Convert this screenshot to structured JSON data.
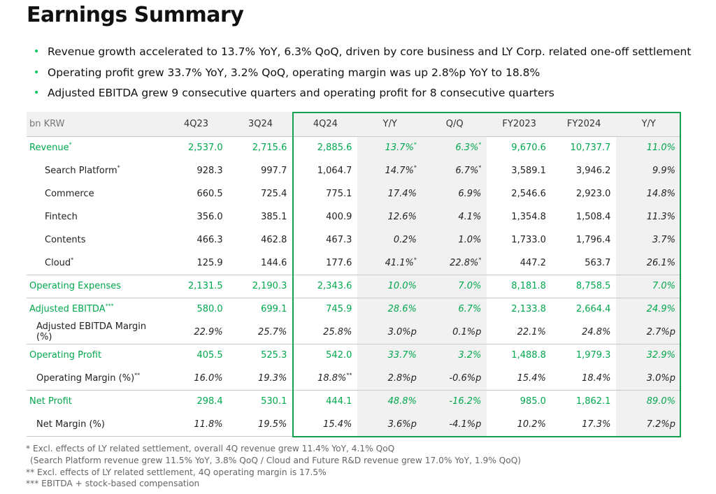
{
  "title": "Earnings Summary",
  "bullets": [
    "Revenue growth accelerated to 13.7% YoY, 6.3% QoQ, driven by core business and LY Corp. related one-off settlement",
    "Operating profit grew 33.7% YoY, 3.2% QoQ, operating margin was up 2.8%p YoY to 18.8%",
    "Adjusted EBITDA grew 9 consecutive quarters and operating profit for 8 consecutive quarters"
  ],
  "table": {
    "unit": "bn KRW",
    "headers": [
      "4Q23",
      "3Q24",
      "4Q24",
      "Y/Y",
      "Q/Q",
      "FY2023",
      "FY2024",
      "Y/Y"
    ],
    "rows": [
      {
        "label": "Revenue",
        "mark": "*",
        "values": [
          "2,537.0",
          "2,715.6",
          "2,885.6",
          "13.7%",
          "6.3%",
          "9,670.6",
          "10,737.7",
          "11.0%"
        ],
        "marks": [
          "",
          "",
          "",
          "*",
          "*",
          "",
          "",
          ""
        ]
      },
      {
        "label": "Search Platform",
        "mark": "*",
        "values": [
          "928.3",
          "997.7",
          "1,064.7",
          "14.7%",
          "6.7%",
          "3,589.1",
          "3,946.2",
          "9.9%"
        ],
        "marks": [
          "",
          "",
          "",
          "*",
          "*",
          "",
          "",
          ""
        ]
      },
      {
        "label": "Commerce",
        "mark": "",
        "values": [
          "660.5",
          "725.4",
          "775.1",
          "17.4%",
          "6.9%",
          "2,546.6",
          "2,923.0",
          "14.8%"
        ],
        "marks": [
          "",
          "",
          "",
          "",
          "",
          "",
          "",
          ""
        ]
      },
      {
        "label": "Fintech",
        "mark": "",
        "values": [
          "356.0",
          "385.1",
          "400.9",
          "12.6%",
          "4.1%",
          "1,354.8",
          "1,508.4",
          "11.3%"
        ],
        "marks": [
          "",
          "",
          "",
          "",
          "",
          "",
          "",
          ""
        ]
      },
      {
        "label": "Contents",
        "mark": "",
        "values": [
          "466.3",
          "462.8",
          "467.3",
          "0.2%",
          "1.0%",
          "1,733.0",
          "1,796.4",
          "3.7%"
        ],
        "marks": [
          "",
          "",
          "",
          "",
          "",
          "",
          "",
          ""
        ]
      },
      {
        "label": "Cloud",
        "mark": "*",
        "values": [
          "125.9",
          "144.6",
          "177.6",
          "41.1%",
          "22.8%",
          "447.2",
          "563.7",
          "26.1%"
        ],
        "marks": [
          "",
          "",
          "",
          "*",
          "*",
          "",
          "",
          ""
        ]
      },
      {
        "label": "Operating Expenses",
        "mark": "",
        "values": [
          "2,131.5",
          "2,190.3",
          "2,343.6",
          "10.0%",
          "7.0%",
          "8,181.8",
          "8,758.5",
          "7.0%"
        ],
        "marks": [
          "",
          "",
          "",
          "",
          "",
          "",
          "",
          ""
        ]
      },
      {
        "label": "Adjusted EBITDA",
        "mark": "***",
        "values": [
          "580.0",
          "699.1",
          "745.9",
          "28.6%",
          "6.7%",
          "2,133.8",
          "2,664.4",
          "24.9%"
        ],
        "marks": [
          "",
          "",
          "",
          "",
          "",
          "",
          "",
          ""
        ]
      },
      {
        "label": "Adjusted EBITDA Margin (%)",
        "mark": "",
        "values": [
          "22.9%",
          "25.7%",
          "25.8%",
          "3.0%p",
          "0.1%p",
          "22.1%",
          "24.8%",
          "2.7%p"
        ],
        "marks": [
          "",
          "",
          "",
          "",
          "",
          "",
          "",
          ""
        ]
      },
      {
        "label": "Operating Profit",
        "mark": "",
        "values": [
          "405.5",
          "525.3",
          "542.0",
          "33.7%",
          "3.2%",
          "1,488.8",
          "1,979.3",
          "32.9%"
        ],
        "marks": [
          "",
          "",
          "",
          "",
          "",
          "",
          "",
          ""
        ]
      },
      {
        "label": "Operating Margin (%)",
        "mark": "**",
        "values": [
          "16.0%",
          "19.3%",
          "18.8%",
          "2.8%p",
          "-0.6%p",
          "15.4%",
          "18.4%",
          "3.0%p"
        ],
        "marks": [
          "",
          "",
          "**",
          "",
          "",
          "",
          "",
          ""
        ]
      },
      {
        "label": "Net Profit",
        "mark": "",
        "values": [
          "298.4",
          "530.1",
          "444.1",
          "48.8%",
          "-16.2%",
          "985.0",
          "1,862.1",
          "89.0%"
        ],
        "marks": [
          "",
          "",
          "",
          "",
          "",
          "",
          "",
          ""
        ]
      },
      {
        "label": "Net Margin (%)",
        "mark": "",
        "values": [
          "11.8%",
          "19.5%",
          "15.4%",
          "3.6%p",
          "-4.1%p",
          "10.2%",
          "17.3%",
          "7.2%p"
        ],
        "marks": [
          "",
          "",
          "",
          "",
          "",
          "",
          "",
          ""
        ]
      }
    ]
  },
  "footnotes": [
    "* Excl. effects of LY related settlement, overall 4Q revenue grew 11.4% YoY, 4.1% QoQ",
    "(Search Platform revenue grew 11.5% YoY, 3.8% QoQ / Cloud and Future R&D revenue grew 17.0% YoY, 1.9% QoQ)",
    "** Excl. effects of LY related settlement, 4Q operating margin is 17.5%",
    "*** EBITDA + stock-based compensation"
  ],
  "colors": {
    "accent_green": "#03c75a",
    "box_green": "#12a150",
    "shade": "#f1f1f1"
  }
}
